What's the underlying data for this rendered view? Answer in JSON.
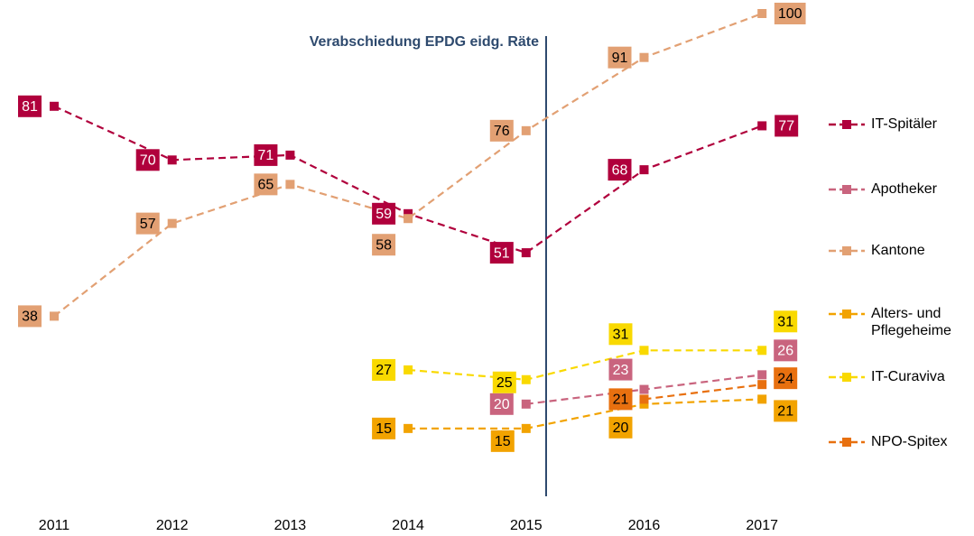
{
  "chart_data": {
    "type": "line",
    "annotation": "Verabschiedung EPDG eidg. Räte",
    "categories": [
      "2011",
      "2012",
      "2013",
      "2014",
      "2015",
      "2016",
      "2017"
    ],
    "series": [
      {
        "name": "IT-Spitäler",
        "color": "#b0003c",
        "values": [
          81,
          70,
          71,
          59,
          51,
          68,
          77
        ]
      },
      {
        "name": "Apotheker",
        "color": "#c9647e",
        "values": [
          null,
          null,
          null,
          null,
          20,
          23,
          26
        ]
      },
      {
        "name": "Kantone",
        "color": "#e2a073",
        "values": [
          38,
          57,
          65,
          58,
          76,
          91,
          100
        ]
      },
      {
        "name": "Alters- und Pflegeheime",
        "color": "#f2a300",
        "values": [
          null,
          null,
          null,
          15,
          15,
          20,
          21
        ]
      },
      {
        "name": "IT-Curaviva",
        "color": "#f9d900",
        "values": [
          null,
          null,
          null,
          27,
          25,
          31,
          31
        ]
      },
      {
        "name": "NPO-Spitex",
        "color": "#e8700f",
        "values": [
          null,
          null,
          null,
          null,
          null,
          21,
          24
        ]
      }
    ]
  }
}
